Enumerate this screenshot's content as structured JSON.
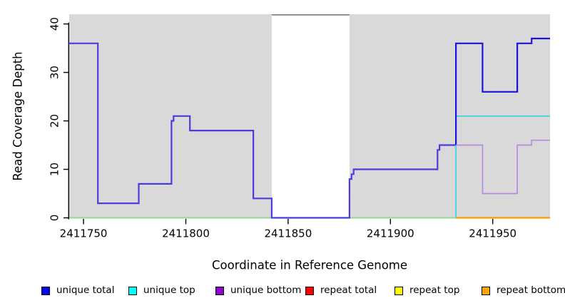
{
  "chart_data": {
    "type": "line",
    "subtype": "step-coverage-plot",
    "title": "",
    "xlabel": "Coordinate in Reference Genome",
    "ylabel": "Read Coverage Depth",
    "xlim": [
      2411743,
      2411978
    ],
    "ylim": [
      0,
      42
    ],
    "xticks": [
      2411750,
      2411800,
      2411850,
      2411900,
      2411950
    ],
    "yticks": [
      0,
      10,
      20,
      30,
      40
    ],
    "grid": false,
    "plot_background": "#d9d9d9",
    "gap_region": {
      "x0": 2411842,
      "x1": 2411880,
      "fill": "#ffffff",
      "top_border_color": "#7a7a7a"
    },
    "series": [
      {
        "name": "unique total",
        "color": "#0000ff",
        "steps": [
          [
            2411743,
            36
          ],
          [
            2411757,
            3
          ],
          [
            2411777,
            7
          ],
          [
            2411793,
            20
          ],
          [
            2411794,
            21
          ],
          [
            2411802,
            18
          ],
          [
            2411833,
            4
          ],
          [
            2411842,
            0
          ],
          [
            2411880,
            8
          ],
          [
            2411881,
            9
          ],
          [
            2411882,
            10
          ],
          [
            2411923,
            14
          ],
          [
            2411924,
            15
          ],
          [
            2411932,
            36
          ],
          [
            2411945,
            26
          ],
          [
            2411962,
            36
          ],
          [
            2411969,
            37
          ]
        ],
        "end": 2411978
      },
      {
        "name": "unique top",
        "color": "#00ffff",
        "steps": [
          [
            2411743,
            0
          ],
          [
            2411932,
            21
          ]
        ],
        "end": 2411978
      },
      {
        "name": "unique bottom",
        "color": "#9400d3",
        "steps": [
          [
            2411932,
            15
          ],
          [
            2411945,
            5
          ],
          [
            2411962,
            15
          ],
          [
            2411969,
            16
          ]
        ],
        "end": 2411978
      },
      {
        "name": "repeat total",
        "color": "#ff0000",
        "steps": [
          [
            2411743,
            0
          ]
        ],
        "end": 2411978
      },
      {
        "name": "repeat top",
        "color": "#ffff00",
        "steps": [
          [
            2411743,
            0
          ]
        ],
        "end": 2411978
      },
      {
        "name": "repeat bottom",
        "color": "#ffa500",
        "steps": [
          [
            2411743,
            0
          ]
        ],
        "end": 2411978
      }
    ],
    "render_lines": [
      {
        "id": "baseline-blend-left",
        "color": "#93d693",
        "width": 2,
        "steps": [
          [
            2411743,
            0
          ]
        ],
        "end": 2411932
      },
      {
        "id": "baseline-orange-right",
        "color": "#ff9a00",
        "width": 2.2,
        "steps": [
          [
            2411932,
            0
          ]
        ],
        "end": 2411978
      },
      {
        "id": "unique-total-left-overlapped",
        "color": "#4b3ce0",
        "width": 2.2,
        "steps": [
          [
            2411743,
            36
          ],
          [
            2411757,
            3
          ],
          [
            2411777,
            7
          ],
          [
            2411793,
            20
          ],
          [
            2411794,
            21
          ],
          [
            2411802,
            18
          ],
          [
            2411833,
            4
          ],
          [
            2411842,
            0
          ],
          [
            2411880,
            8
          ],
          [
            2411881,
            9
          ],
          [
            2411882,
            10
          ],
          [
            2411923,
            14
          ],
          [
            2411924,
            15
          ]
        ],
        "end": 2411932
      },
      {
        "id": "unique-top-cyan",
        "color": "#33d5e6",
        "width": 1.7,
        "rise_from": 0,
        "steps": [
          [
            2411932,
            21
          ]
        ],
        "end": 2411978
      },
      {
        "id": "unique-total-right",
        "color": "#1c13e0",
        "width": 2.2,
        "rise_from": 15,
        "steps": [
          [
            2411932,
            36
          ],
          [
            2411945,
            26
          ],
          [
            2411962,
            36
          ],
          [
            2411969,
            37
          ]
        ],
        "end": 2411978
      },
      {
        "id": "unique-bottom-purple",
        "color": "#b78ae0",
        "width": 1.7,
        "steps": [
          [
            2411932,
            15
          ],
          [
            2411945,
            5
          ],
          [
            2411962,
            15
          ],
          [
            2411969,
            16
          ]
        ],
        "end": 2411978
      }
    ],
    "legend": [
      {
        "label": "unique total",
        "color": "#0000ff"
      },
      {
        "label": "unique top",
        "color": "#00ffff"
      },
      {
        "label": "unique bottom",
        "color": "#9400d3"
      },
      {
        "label": "repeat total",
        "color": "#ff0000"
      },
      {
        "label": "repeat top",
        "color": "#ffff00"
      },
      {
        "label": "repeat bottom",
        "color": "#ffa500"
      }
    ],
    "legend_position": "bottom"
  }
}
